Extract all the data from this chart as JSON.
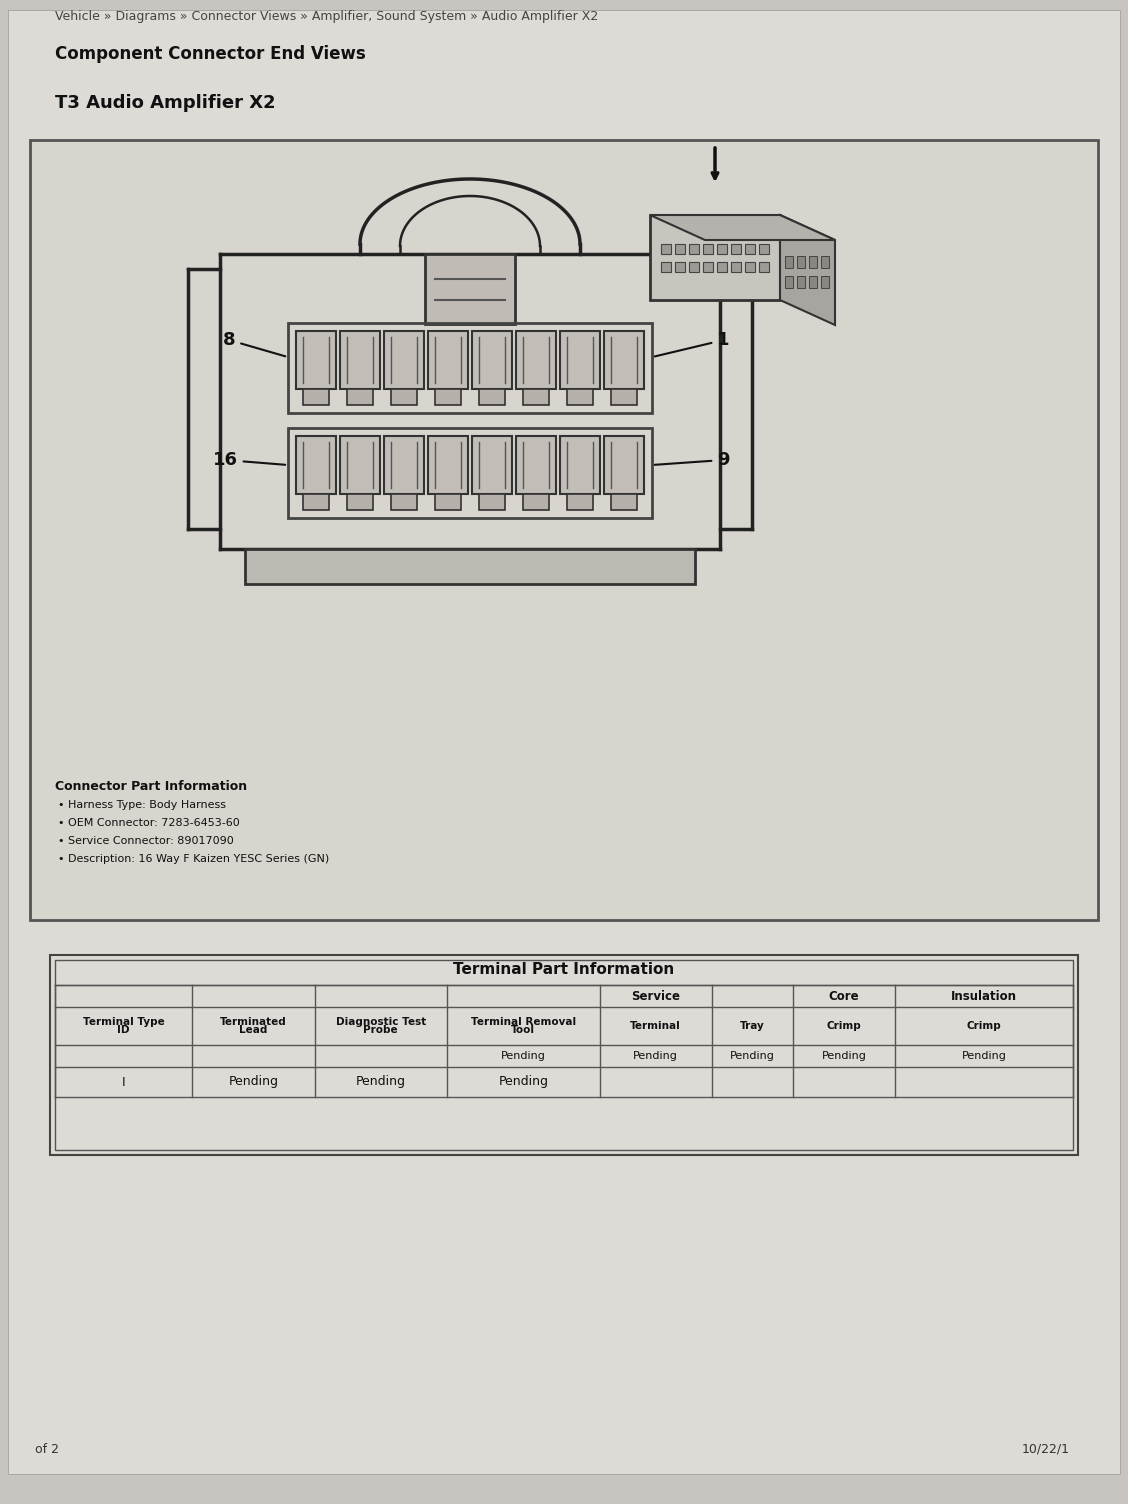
{
  "bg_color": "#c8c5c0",
  "page_bg": "#dedad6",
  "breadcrumb": "Vehicle » Diagrams » Connector Views » Amplifier, Sound System » Audio Amplifier X2",
  "heading1": "Component Connector End Views",
  "heading2": "T3 Audio Amplifier X2",
  "connector_info_title": "Connector Part Information",
  "connector_info_bullets": [
    "Harness Type: Body Harness",
    "OEM Connector: 7283-6453-60",
    "Service Connector: 89017090",
    "Description: 16 Way F Kaizen YESC Series (GN)"
  ],
  "pin_labels": [
    "8",
    "1",
    "16",
    "9"
  ],
  "table_title": "Terminal Part Information",
  "col_header_top": [
    "",
    "",
    "",
    "",
    "Service",
    "",
    "Core",
    "Insulation"
  ],
  "col_header_bot": [
    "Terminal Type\nID",
    "Terminated\nLead",
    "Diagnostic Test\nProbe",
    "Terminal Removal\nTool",
    "Terminal",
    "Tray",
    "Crimp",
    "Crimp"
  ],
  "table_pending_row": [
    "",
    "",
    "",
    "Pending",
    "Pending",
    "Pending",
    "Pending",
    "Pending"
  ],
  "table_data_row": [
    "I",
    "Pending",
    "Pending",
    "Pending",
    "",
    "",
    "",
    ""
  ],
  "footer_date": "10/22/1",
  "footer_page": "of 2"
}
